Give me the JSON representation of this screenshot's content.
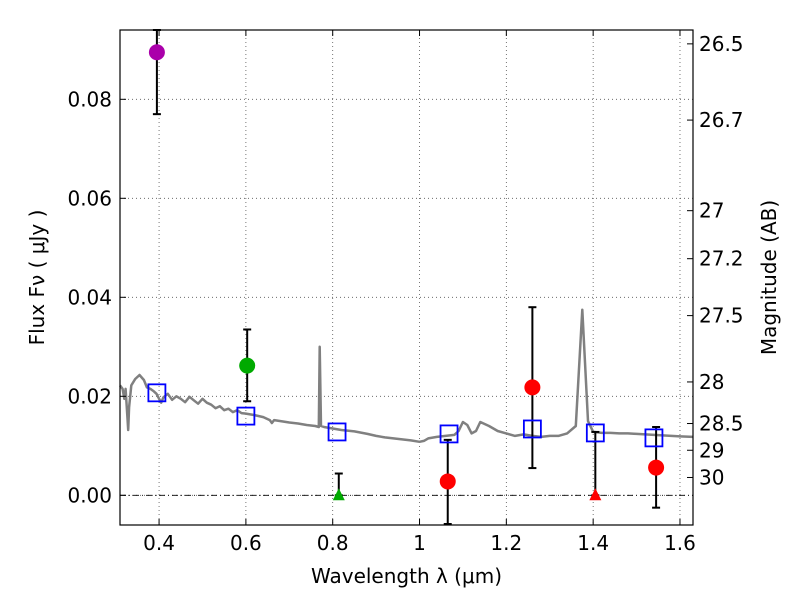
{
  "chart_data": {
    "type": "scatter",
    "xlabel": "Wavelength  λ (μm)",
    "ylabel": "Flux  Fν  ( μJy )",
    "y2label": "Magnitude (AB)",
    "xlim": [
      0.31,
      1.63
    ],
    "ylim": [
      -0.006,
      0.094
    ],
    "grid": true,
    "x_ticks": [
      {
        "value": 0.4,
        "label": "0.4"
      },
      {
        "value": 0.6,
        "label": "0.6"
      },
      {
        "value": 0.8,
        "label": "0.8"
      },
      {
        "value": 1.0,
        "label": "1"
      },
      {
        "value": 1.2,
        "label": "1.2"
      },
      {
        "value": 1.4,
        "label": "1.4"
      },
      {
        "value": 1.6,
        "label": "1.6"
      }
    ],
    "y_ticks": [
      {
        "value": 0.0,
        "label": "0.00"
      },
      {
        "value": 0.02,
        "label": "0.02"
      },
      {
        "value": 0.04,
        "label": "0.04"
      },
      {
        "value": 0.06,
        "label": "0.06"
      },
      {
        "value": 0.08,
        "label": "0.08"
      }
    ],
    "mag_ticks": [
      {
        "flux": 0.0912,
        "label": "26.5"
      },
      {
        "flux": 0.0758,
        "label": "26.7"
      },
      {
        "flux": 0.0575,
        "label": "27"
      },
      {
        "flux": 0.0478,
        "label": "27.2"
      },
      {
        "flux": 0.0363,
        "label": "27.5"
      },
      {
        "flux": 0.0229,
        "label": "28"
      },
      {
        "flux": 0.0145,
        "label": "28.5"
      },
      {
        "flux": 0.0091,
        "label": "29"
      },
      {
        "flux": 0.0036,
        "label": "30"
      }
    ],
    "colors": {
      "photometry": "#ff0000",
      "green": "#00aa00",
      "magenta": "#aa00aa",
      "model_box": "#0000ff",
      "sed_line": "#808080",
      "errorbar": "#000000",
      "grid": "#555555"
    },
    "detections": [
      {
        "x": 0.395,
        "y": 0.0895,
        "yerr_low": 0.077,
        "yerr_high": 0.094,
        "color": "#aa00aa"
      },
      {
        "x": 0.603,
        "y": 0.0262,
        "yerr_low": 0.019,
        "yerr_high": 0.0335,
        "color": "#00aa00"
      },
      {
        "x": 1.065,
        "y": 0.0028,
        "yerr_low": -0.0058,
        "yerr_high": 0.0112,
        "color": "#ff0000"
      },
      {
        "x": 1.26,
        "y": 0.0218,
        "yerr_low": 0.0055,
        "yerr_high": 0.038,
        "color": "#ff0000"
      },
      {
        "x": 1.545,
        "y": 0.0056,
        "yerr_low": -0.0025,
        "yerr_high": 0.0138,
        "color": "#ff0000"
      }
    ],
    "upper_limits": [
      {
        "x": 0.814,
        "y": 0.0,
        "err_high": 0.0044,
        "color": "#00aa00"
      },
      {
        "x": 1.405,
        "y": 0.0,
        "err_high": 0.0128,
        "color": "#ff0000"
      }
    ],
    "model_points": [
      {
        "x": 0.395,
        "y": 0.0207
      },
      {
        "x": 0.6,
        "y": 0.016
      },
      {
        "x": 0.81,
        "y": 0.0128
      },
      {
        "x": 1.068,
        "y": 0.0124
      },
      {
        "x": 1.26,
        "y": 0.0134
      },
      {
        "x": 1.405,
        "y": 0.0126
      },
      {
        "x": 1.54,
        "y": 0.0116
      }
    ],
    "sed_model": [
      [
        0.31,
        0.0222
      ],
      [
        0.316,
        0.0215
      ],
      [
        0.32,
        0.0195
      ],
      [
        0.323,
        0.0215
      ],
      [
        0.327,
        0.0158
      ],
      [
        0.329,
        0.0132
      ],
      [
        0.331,
        0.0178
      ],
      [
        0.336,
        0.0222
      ],
      [
        0.345,
        0.0235
      ],
      [
        0.355,
        0.0243
      ],
      [
        0.365,
        0.0233
      ],
      [
        0.372,
        0.0218
      ],
      [
        0.38,
        0.0215
      ],
      [
        0.388,
        0.021
      ],
      [
        0.394,
        0.0205
      ],
      [
        0.4,
        0.0195
      ],
      [
        0.405,
        0.0187
      ],
      [
        0.41,
        0.0198
      ],
      [
        0.42,
        0.0205
      ],
      [
        0.43,
        0.0193
      ],
      [
        0.44,
        0.02
      ],
      [
        0.45,
        0.0195
      ],
      [
        0.46,
        0.0188
      ],
      [
        0.47,
        0.0199
      ],
      [
        0.48,
        0.0192
      ],
      [
        0.49,
        0.0185
      ],
      [
        0.5,
        0.0195
      ],
      [
        0.51,
        0.0187
      ],
      [
        0.52,
        0.0183
      ],
      [
        0.53,
        0.0176
      ],
      [
        0.54,
        0.018
      ],
      [
        0.55,
        0.0172
      ],
      [
        0.56,
        0.0175
      ],
      [
        0.57,
        0.0168
      ],
      [
        0.58,
        0.0172
      ],
      [
        0.59,
        0.0166
      ],
      [
        0.6,
        0.0165
      ],
      [
        0.62,
        0.0162
      ],
      [
        0.64,
        0.0158
      ],
      [
        0.655,
        0.0152
      ],
      [
        0.66,
        0.0146
      ],
      [
        0.665,
        0.0152
      ],
      [
        0.68,
        0.015
      ],
      [
        0.7,
        0.0147
      ],
      [
        0.72,
        0.0145
      ],
      [
        0.74,
        0.0142
      ],
      [
        0.76,
        0.014
      ],
      [
        0.768,
        0.0138
      ],
      [
        0.77,
        0.03
      ],
      [
        0.773,
        0.014
      ],
      [
        0.78,
        0.0138
      ],
      [
        0.8,
        0.0135
      ],
      [
        0.82,
        0.0132
      ],
      [
        0.85,
        0.0129
      ],
      [
        0.88,
        0.0124
      ],
      [
        0.9,
        0.012
      ],
      [
        0.92,
        0.0117
      ],
      [
        0.95,
        0.0114
      ],
      [
        0.98,
        0.0111
      ],
      [
        1.0,
        0.0108
      ],
      [
        1.01,
        0.011
      ],
      [
        1.02,
        0.0115
      ],
      [
        1.04,
        0.0118
      ],
      [
        1.06,
        0.012
      ],
      [
        1.08,
        0.0122
      ],
      [
        1.09,
        0.013
      ],
      [
        1.1,
        0.0148
      ],
      [
        1.11,
        0.0142
      ],
      [
        1.12,
        0.0125
      ],
      [
        1.13,
        0.013
      ],
      [
        1.14,
        0.0148
      ],
      [
        1.16,
        0.014
      ],
      [
        1.18,
        0.013
      ],
      [
        1.2,
        0.0125
      ],
      [
        1.22,
        0.012
      ],
      [
        1.24,
        0.0123
      ],
      [
        1.26,
        0.012
      ],
      [
        1.28,
        0.0118
      ],
      [
        1.3,
        0.012
      ],
      [
        1.32,
        0.012
      ],
      [
        1.34,
        0.0125
      ],
      [
        1.36,
        0.014
      ],
      [
        1.375,
        0.0375
      ],
      [
        1.388,
        0.015
      ],
      [
        1.4,
        0.0128
      ],
      [
        1.42,
        0.0126
      ],
      [
        1.44,
        0.0126
      ],
      [
        1.46,
        0.0125
      ],
      [
        1.48,
        0.0125
      ],
      [
        1.5,
        0.0124
      ],
      [
        1.52,
        0.0123
      ],
      [
        1.54,
        0.0122
      ],
      [
        1.56,
        0.0121
      ],
      [
        1.58,
        0.012
      ],
      [
        1.6,
        0.0119
      ],
      [
        1.63,
        0.0118
      ]
    ]
  }
}
